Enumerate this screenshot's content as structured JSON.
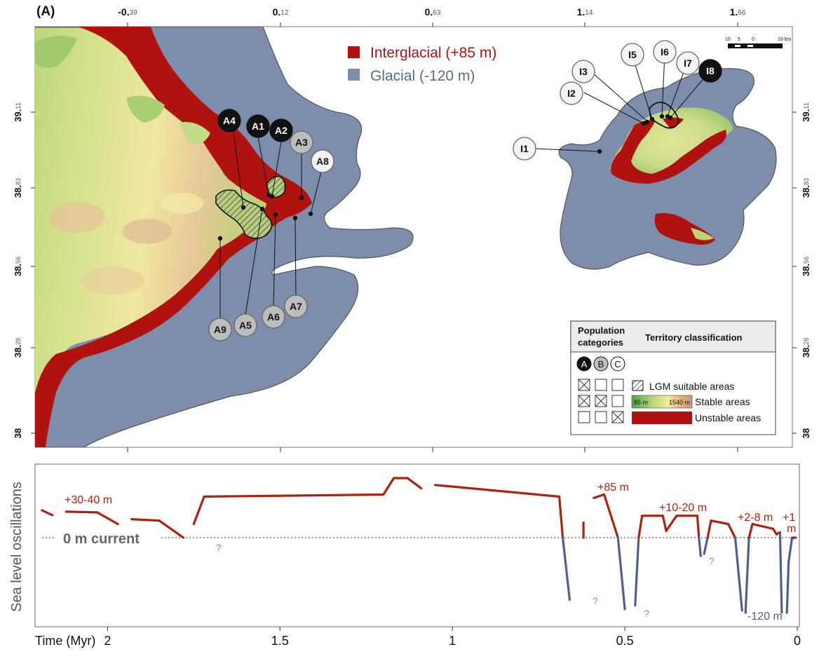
{
  "panel_label": "(A)",
  "top_axis_ticks": [
    {
      "main": "-0.",
      "sup": "39"
    },
    {
      "main": "0.",
      "sup": "12"
    },
    {
      "main": "0.",
      "sup": "63"
    },
    {
      "main": "1.",
      "sup": "14"
    },
    {
      "main": "1.",
      "sup": "66"
    }
  ],
  "side_axis_ticks": [
    {
      "main": "39.",
      "sup": "11"
    },
    {
      "main": "38.",
      "sup": "83"
    },
    {
      "main": "38.",
      "sup": "56"
    },
    {
      "main": "38.",
      "sup": "28"
    },
    {
      "main": "38",
      "sup": ""
    }
  ],
  "right_axis_ticks": [
    "39.11",
    "38.83",
    "38.56",
    "38.28",
    "38"
  ],
  "legend_top": {
    "interglacial": "Interglacial (+85 m)",
    "glacial": "Glacial (-120 m)"
  },
  "colors": {
    "interglacial": "#b0130f",
    "glacial": "#7c8eab",
    "sea_line_red": "#b0210f",
    "sea_line_blue": "#4f6090",
    "population_B_fill": "#bdbdbd"
  },
  "scale_bar": {
    "labels": [
      "10",
      "5",
      "0",
      "10 km"
    ]
  },
  "populations_A": [
    {
      "id": "A1",
      "category": "A"
    },
    {
      "id": "A2",
      "category": "A"
    },
    {
      "id": "A3",
      "category": "B"
    },
    {
      "id": "A4",
      "category": "A"
    },
    {
      "id": "A5",
      "category": "B"
    },
    {
      "id": "A6",
      "category": "B"
    },
    {
      "id": "A7",
      "category": "B"
    },
    {
      "id": "A8",
      "category": "C"
    },
    {
      "id": "A9",
      "category": "B"
    }
  ],
  "populations_I": [
    {
      "id": "I1",
      "category": "C"
    },
    {
      "id": "I2",
      "category": "C"
    },
    {
      "id": "I3",
      "category": "C"
    },
    {
      "id": "I5",
      "category": "C"
    },
    {
      "id": "I6",
      "category": "C"
    },
    {
      "id": "I7",
      "category": "C"
    },
    {
      "id": "I8",
      "category": "A"
    }
  ],
  "legend_box": {
    "header_left": "Population categories",
    "header_left_line1": "Population",
    "header_left_line2": "categories",
    "header_right": "Territory classification",
    "category_symbols": [
      "A",
      "B",
      "C"
    ],
    "rows": [
      {
        "checks": [
          true,
          false,
          false
        ],
        "label": "LGM suitable areas"
      },
      {
        "checks": [
          true,
          true,
          false
        ],
        "label": "Stable areas",
        "gradient_labels": [
          "85 m",
          "1540 m"
        ]
      },
      {
        "checks": [
          false,
          false,
          true
        ],
        "label": "Unstable areas"
      }
    ]
  },
  "sea_level": {
    "ylabel": "Sea level oscillations",
    "xlabel": "Time (Myr)",
    "x_ticks": [
      "2",
      "1.5",
      "1",
      "0.5",
      "0"
    ],
    "reference_label": "0 m current",
    "annotations": [
      "+30-40 m",
      "+85 m",
      "+10-20 m",
      "+2-8 m",
      "+1",
      "m",
      "-120 m"
    ],
    "question_marks": [
      "?",
      "?",
      "?",
      "?"
    ]
  },
  "chart_data": {
    "type": "line",
    "title": "",
    "xlabel": "Time (Myr)",
    "ylabel": "Sea level oscillations",
    "xlim": [
      2.2,
      0
    ],
    "ylim": [
      -130,
      95
    ],
    "x_ticks": [
      2,
      1.5,
      1,
      0.5,
      0
    ],
    "reference_line": {
      "y": 0,
      "label": "0 m current"
    },
    "series": [
      {
        "points": [
          [
            2.19,
            40
          ],
          [
            2.16,
            33
          ]
        ]
      },
      {
        "points": [
          [
            2.12,
            38
          ],
          [
            2.03,
            37
          ],
          [
            1.97,
            20
          ]
        ]
      },
      {
        "points": [
          [
            1.93,
            27
          ],
          [
            1.85,
            25
          ],
          [
            1.78,
            0
          ]
        ]
      },
      {
        "points": [
          [
            1.75,
            20
          ],
          [
            1.72,
            60
          ],
          [
            1.2,
            63
          ],
          [
            1.17,
            87
          ],
          [
            1.13,
            87
          ],
          [
            1.09,
            72
          ]
        ]
      },
      {
        "points": [
          [
            1.05,
            77
          ],
          [
            0.69,
            60
          ],
          [
            0.68,
            0
          ],
          [
            0.66,
            -85
          ]
        ]
      },
      {
        "points": [
          [
            0.62,
            22
          ],
          [
            0.62,
            0
          ]
        ]
      },
      {
        "points": [
          [
            0.59,
            58
          ],
          [
            0.56,
            63
          ],
          [
            0.52,
            0
          ],
          [
            0.5,
            -98
          ]
        ]
      },
      {
        "points": [
          [
            0.47,
            -93
          ],
          [
            0.46,
            0
          ],
          [
            0.45,
            32
          ],
          [
            0.39,
            32
          ],
          [
            0.38,
            10
          ],
          [
            0.35,
            32
          ],
          [
            0.29,
            32
          ],
          [
            0.285,
            0
          ],
          [
            0.28,
            -25
          ]
        ]
      },
      {
        "points": [
          [
            0.27,
            -22
          ],
          [
            0.26,
            0
          ],
          [
            0.25,
            25
          ],
          [
            0.2,
            20
          ],
          [
            0.18,
            0
          ],
          [
            0.16,
            -100
          ]
        ]
      },
      {
        "points": [
          [
            0.15,
            -103
          ],
          [
            0.14,
            0
          ],
          [
            0.13,
            20
          ],
          [
            0.07,
            13
          ],
          [
            0.06,
            5
          ],
          [
            0.05,
            8
          ],
          [
            0.045,
            -103
          ]
        ]
      },
      {
        "points": [
          [
            0.03,
            -103
          ],
          [
            0.025,
            -33
          ],
          [
            0.015,
            0
          ],
          [
            0.01,
            0
          ],
          [
            0.005,
            0
          ]
        ]
      }
    ]
  }
}
